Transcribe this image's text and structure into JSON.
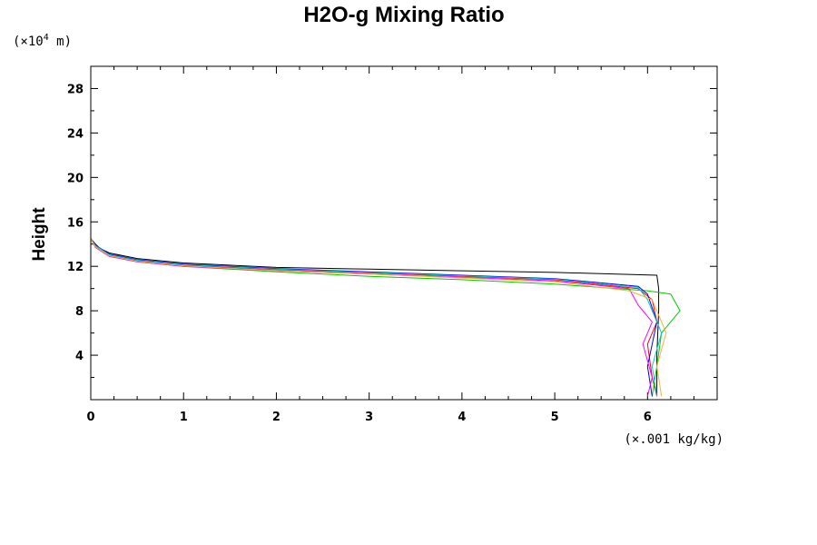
{
  "chart_data": {
    "type": "line",
    "title": "H2O-g Mixing Ratio",
    "ylabel": "Height",
    "x_unit": "(×.001 kg/kg)",
    "y_unit_prefix": "(×10",
    "y_unit_exp": "4",
    "y_unit_suffix": " m)",
    "xlim": [
      0,
      6.75
    ],
    "ylim": [
      0,
      30
    ],
    "x_ticks": [
      "0",
      "1",
      "2",
      "3",
      "4",
      "5",
      "6"
    ],
    "y_ticks": [
      "4",
      "8",
      "12",
      "16",
      "20",
      "24",
      "28"
    ],
    "grid": false,
    "legend": "none",
    "series": [
      {
        "color": "#000000",
        "x": [
          6.1,
          6.1,
          6.12,
          6.12,
          6.1,
          5.0,
          4.0,
          3.0,
          2.0,
          1.0,
          0.5,
          0.2,
          0.1,
          0.05,
          0.0,
          0.0
        ],
        "y": [
          0.3,
          4,
          8,
          10,
          11.2,
          11.45,
          11.6,
          11.75,
          11.9,
          12.3,
          12.7,
          13.2,
          13.6,
          14.0,
          14.5,
          30
        ]
      },
      {
        "color": "#ff0000",
        "x": [
          6.1,
          6.05,
          6.0,
          6.1,
          6.05,
          5.9,
          5.0,
          4.0,
          3.0,
          2.0,
          1.0,
          0.5,
          0.2,
          0.05,
          0.0
        ],
        "y": [
          0.3,
          2,
          5,
          7,
          9,
          10,
          10.8,
          11.1,
          11.4,
          11.7,
          12.1,
          12.5,
          13.0,
          13.8,
          14.5
        ]
      },
      {
        "color": "#00cc00",
        "x": [
          6.05,
          6.1,
          6.15,
          6.35,
          6.25,
          6.0,
          5.0,
          4.0,
          3.0,
          2.0,
          1.0,
          0.5,
          0.2,
          0.05,
          0.0
        ],
        "y": [
          0.3,
          3,
          6,
          8,
          9.5,
          9.8,
          10.4,
          10.8,
          11.1,
          11.5,
          12.0,
          12.4,
          12.9,
          13.7,
          14.5
        ]
      },
      {
        "color": "#0000ff",
        "x": [
          6.05,
          6.0,
          6.1,
          6.0,
          5.9,
          5.0,
          4.0,
          3.0,
          2.0,
          1.0,
          0.5,
          0.2,
          0.05,
          0.0
        ],
        "y": [
          0.3,
          3,
          7,
          9.5,
          10.2,
          10.9,
          11.2,
          11.5,
          11.8,
          12.2,
          12.6,
          13.1,
          13.9,
          14.5
        ]
      },
      {
        "color": "#ff00ff",
        "x": [
          6.0,
          6.05,
          5.95,
          6.05,
          5.9,
          5.8,
          5.0,
          4.0,
          3.0,
          2.0,
          1.0,
          0.5,
          0.2,
          0.05,
          0.0,
          0.0
        ],
        "y": [
          0.3,
          2,
          5,
          7,
          8.5,
          10.0,
          10.7,
          11.0,
          11.3,
          11.6,
          12.0,
          12.4,
          12.9,
          13.7,
          14.5,
          30
        ]
      },
      {
        "color": "#00cccc",
        "x": [
          6.1,
          6.05,
          6.15,
          6.0,
          5.9,
          5.0,
          4.0,
          3.0,
          2.0,
          1.0,
          0.5,
          0.2,
          0.05,
          0.0
        ],
        "y": [
          0.3,
          3,
          6,
          9,
          10.1,
          10.85,
          11.15,
          11.45,
          11.75,
          12.15,
          12.55,
          13.05,
          13.85,
          14.5
        ]
      },
      {
        "color": "#ffaa44",
        "x": [
          6.15,
          6.1,
          6.2,
          6.05,
          5.8,
          5.0,
          4.0,
          3.0,
          2.0,
          1.0,
          0.5,
          0.2,
          0.05,
          0.0
        ],
        "y": [
          0.3,
          3,
          6,
          9,
          9.8,
          10.6,
          10.95,
          11.3,
          11.6,
          12.05,
          12.45,
          12.95,
          13.75,
          14.5
        ]
      }
    ]
  }
}
